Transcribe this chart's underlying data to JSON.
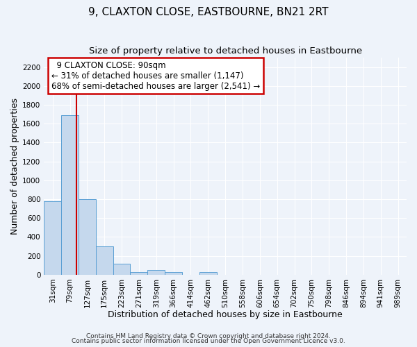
{
  "title": "9, CLAXTON CLOSE, EASTBOURNE, BN21 2RT",
  "subtitle": "Size of property relative to detached houses in Eastbourne",
  "xlabel": "Distribution of detached houses by size in Eastbourne",
  "ylabel": "Number of detached properties",
  "bin_labels": [
    "31sqm",
    "79sqm",
    "127sqm",
    "175sqm",
    "223sqm",
    "271sqm",
    "319sqm",
    "366sqm",
    "414sqm",
    "462sqm",
    "510sqm",
    "558sqm",
    "606sqm",
    "654sqm",
    "702sqm",
    "750sqm",
    "798sqm",
    "846sqm",
    "894sqm",
    "941sqm",
    "989sqm"
  ],
  "bar_heights": [
    780,
    1690,
    800,
    300,
    115,
    30,
    50,
    25,
    0,
    30,
    0,
    0,
    0,
    0,
    0,
    0,
    0,
    0,
    0,
    0,
    0
  ],
  "bar_color": "#c5d8ed",
  "bar_edge_color": "#5a9fd4",
  "red_line_x": 1.37,
  "annotation_title": "9 CLAXTON CLOSE: 90sqm",
  "annotation_line1": "← 31% of detached houses are smaller (1,147)",
  "annotation_line2": "68% of semi-detached houses are larger (2,541) →",
  "annotation_box_color": "#ffffff",
  "annotation_box_edge": "#cc0000",
  "red_line_color": "#cc0000",
  "ylim": [
    0,
    2300
  ],
  "yticks": [
    0,
    200,
    400,
    600,
    800,
    1000,
    1200,
    1400,
    1600,
    1800,
    2000,
    2200
  ],
  "footer1": "Contains HM Land Registry data © Crown copyright and database right 2024.",
  "footer2": "Contains public sector information licensed under the Open Government Licence v3.0.",
  "bg_color": "#eef3fa",
  "grid_color": "#ffffff",
  "title_fontsize": 11,
  "subtitle_fontsize": 9.5,
  "axis_label_fontsize": 9,
  "tick_fontsize": 7.5,
  "footer_fontsize": 6.5,
  "ann_fontsize": 8.5
}
